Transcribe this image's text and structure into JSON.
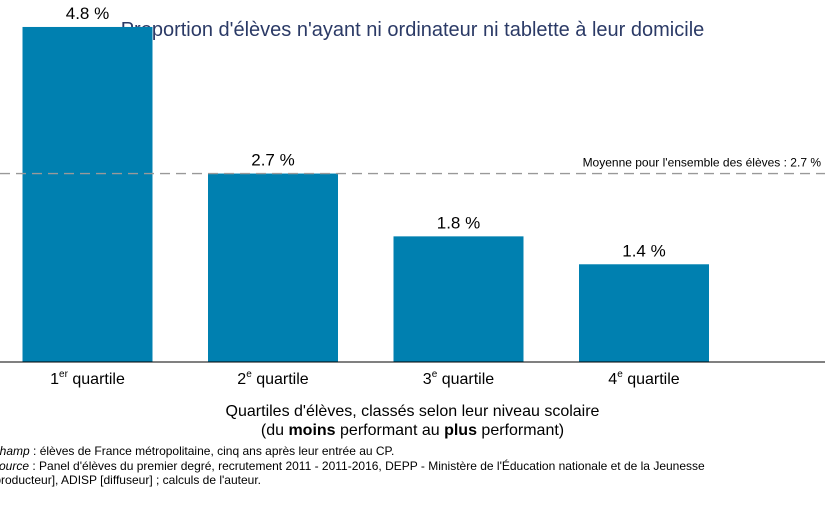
{
  "chart_data": {
    "type": "bar",
    "title": "Proportion d'élèves n'ayant ni ordinateur ni tablette à leur domicile",
    "categories": [
      {
        "num": "1",
        "sup": "er",
        "label": "quartile"
      },
      {
        "num": "2",
        "sup": "e",
        "label": "quartile"
      },
      {
        "num": "3",
        "sup": "e",
        "label": "quartile"
      },
      {
        "num": "4",
        "sup": "e",
        "label": "quartile"
      }
    ],
    "values": [
      4.8,
      2.7,
      1.8,
      1.4
    ],
    "value_labels": [
      "4.8 %",
      "2.7 %",
      "1.8 %",
      "1.4 %"
    ],
    "unit": "%",
    "ylim": [
      0,
      5
    ],
    "grid": false,
    "bar_color": "#0080b0",
    "reference_line": {
      "value": 2.7,
      "label": "Moyenne pour l'ensemble des élèves : 2.7 %",
      "style": "dashed",
      "color": "#999999"
    },
    "xlabel": {
      "line1": "Quartiles d'élèves, classés selon leur niveau scolaire",
      "line2_prefix": "(du ",
      "line2_bold1": "moins",
      "line2_mid": " performant au ",
      "line2_bold2": "plus",
      "line2_suffix": " performant)"
    },
    "title_color": "#2b3a66"
  },
  "footnotes": {
    "champ_key": "Champ",
    "champ_text": " : élèves de France métropolitaine, cinq ans après leur entrée au CP.",
    "source_key": "Source",
    "source_text": " : Panel d'élèves du premier degré, recrutement 2011 - 2011-2016, DEPP - Ministère de l'Éducation nationale et de la Jeunesse",
    "source_text2": "[producteur], ADISP [diffuseur] ; calculs de l'auteur."
  }
}
